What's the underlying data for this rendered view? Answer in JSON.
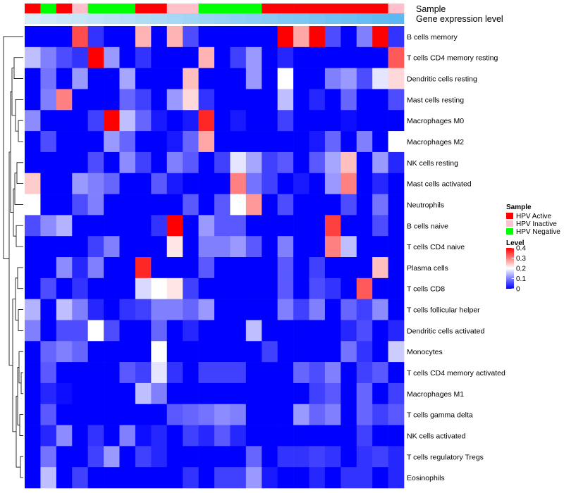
{
  "chart_data": {
    "type": "heatmap",
    "title": "",
    "rows": [
      "B cells memory",
      "T cells CD4 memory resting",
      "Dendritic cells resting",
      "Mast cells resting",
      "Macrophages M0",
      "Macrophages M2",
      "NK cells resting",
      "Mast cells activated",
      "Neutrophils",
      "B cells naive",
      "T cells CD4 naive",
      "Plasma cells",
      "T cells CD8",
      "T cells follicular helper",
      "Dendritic cells activated",
      "Monocytes",
      "T cells CD4 memory activated",
      "Macrophages M1",
      "T cells gamma delta",
      "NK cells activated",
      "T cells regulatory  Tregs",
      "Eosinophils"
    ],
    "samples": [
      "HPV Active",
      "HPV Negative",
      "HPV Active",
      "HPV Inactive",
      "HPV Negative",
      "HPV Negative",
      "HPV Negative",
      "HPV Active",
      "HPV Active",
      "HPV Inactive",
      "HPV Inactive",
      "HPV Negative",
      "HPV Negative",
      "HPV Negative",
      "HPV Negative",
      "HPV Active",
      "HPV Active",
      "HPV Active",
      "HPV Active",
      "HPV Active",
      "HPV Active",
      "HPV Active",
      "HPV Active",
      "HPV Inactive"
    ],
    "expression_track": [
      0.05,
      0.06,
      0.07,
      0.08,
      0.09,
      0.1,
      0.11,
      0.12,
      0.13,
      0.14,
      0.15,
      0.16,
      0.17,
      0.18,
      0.19,
      0.2,
      0.21,
      0.22,
      0.23,
      0.24,
      0.25,
      0.26,
      0.27,
      0.28
    ],
    "values": [
      [
        0,
        0,
        0,
        0.34,
        0.04,
        0,
        0,
        0.26,
        0,
        0.26,
        0.06,
        0,
        0,
        0,
        0,
        0,
        0.4,
        0.27,
        0.4,
        0.06,
        0,
        0.1,
        0.4,
        0.04
      ],
      [
        0.15,
        0.1,
        0.06,
        0.04,
        0.4,
        0.12,
        0,
        0.04,
        0,
        0,
        0,
        0.26,
        0,
        0.05,
        0.12,
        0,
        0.03,
        0,
        0,
        0,
        0,
        0,
        0,
        0.33
      ],
      [
        0,
        0.09,
        0,
        0.12,
        0,
        0,
        0.13,
        0,
        0,
        0,
        0.25,
        0,
        0,
        0,
        0.12,
        0,
        0.2,
        0,
        0,
        0.1,
        0.12,
        0.06,
        0.18,
        0.23
      ],
      [
        0,
        0.1,
        0.3,
        0,
        0,
        0,
        0.08,
        0.05,
        0,
        0.12,
        0.23,
        0.04,
        0,
        0,
        0,
        0,
        0.15,
        0,
        0.03,
        0,
        0.08,
        0,
        0,
        0.06
      ],
      [
        0.11,
        0,
        0,
        0,
        0.05,
        0.4,
        0.15,
        0.08,
        0.02,
        0,
        0.02,
        0.37,
        0,
        0.02,
        0,
        0,
        0.05,
        0,
        0,
        0,
        0.01,
        0,
        0,
        0
      ],
      [
        0,
        0.06,
        0,
        0,
        0,
        0.12,
        0.08,
        0,
        0,
        0.02,
        0.08,
        0.27,
        0,
        0,
        0,
        0,
        0,
        0,
        0.02,
        0.08,
        0,
        0.1,
        0,
        0.2
      ],
      [
        0,
        0,
        0,
        0,
        0.06,
        0,
        0.11,
        0.05,
        0,
        0.1,
        0.07,
        0,
        0.05,
        0.18,
        0.13,
        0.05,
        0.07,
        0,
        0.07,
        0.13,
        0.25,
        0,
        0.12,
        0.03
      ],
      [
        0.24,
        0,
        0,
        0.12,
        0.1,
        0.08,
        0,
        0,
        0.07,
        0.02,
        0,
        0,
        0,
        0.3,
        0.09,
        0.05,
        0,
        0.02,
        0,
        0.12,
        0.3,
        0,
        0.03,
        0
      ],
      [
        0.2,
        0,
        0,
        0.06,
        0.1,
        0,
        0,
        0,
        0,
        0,
        0.07,
        0,
        0.07,
        0.2,
        0.28,
        0,
        0.06,
        0,
        0,
        0,
        0.06,
        0,
        0.09,
        0
      ],
      [
        0.06,
        0.11,
        0.14,
        0,
        0,
        0,
        0,
        0,
        0.04,
        0.4,
        0,
        0.12,
        0.07,
        0.07,
        0,
        0,
        0,
        0,
        0,
        0.35,
        0,
        0,
        0.06,
        0
      ],
      [
        0,
        0,
        0,
        0,
        0.05,
        0.1,
        0,
        0,
        0,
        0.22,
        0,
        0.1,
        0.1,
        0.12,
        0.07,
        0,
        0.1,
        0,
        0,
        0.3,
        0.15,
        0,
        0,
        0
      ],
      [
        0,
        0,
        0.11,
        0.03,
        0.1,
        0,
        0,
        0.37,
        0,
        0,
        0,
        0.07,
        0,
        0,
        0,
        0,
        0.07,
        0,
        0.05,
        0,
        0,
        0,
        0.25,
        0
      ],
      [
        0,
        0.06,
        0,
        0.04,
        0,
        0,
        0,
        0.17,
        0.2,
        0.22,
        0.05,
        0,
        0,
        0,
        0,
        0,
        0.07,
        0,
        0.06,
        0.04,
        0,
        0.33,
        0,
        0
      ],
      [
        0.14,
        0,
        0.15,
        0.1,
        0.03,
        0,
        0.04,
        0.05,
        0.1,
        0.1,
        0.08,
        0.12,
        0,
        0,
        0,
        0,
        0.1,
        0.05,
        0.1,
        0,
        0.08,
        0.05,
        0.11,
        0
      ],
      [
        0.1,
        0,
        0.06,
        0.06,
        0.2,
        0.06,
        0,
        0,
        0.08,
        0,
        0.03,
        0,
        0,
        0,
        0.15,
        0,
        0,
        0,
        0,
        0,
        0.03,
        0.06,
        0,
        0.03
      ],
      [
        0,
        0.08,
        0.1,
        0.08,
        0,
        0,
        0,
        0,
        0.2,
        0,
        0,
        0,
        0,
        0,
        0,
        0.05,
        0,
        0,
        0,
        0,
        0.09,
        0.04,
        0,
        0.16
      ],
      [
        0,
        0.07,
        0,
        0,
        0,
        0,
        0.07,
        0.05,
        0.18,
        0.04,
        0,
        0.05,
        0.05,
        0.05,
        0,
        0,
        0,
        0.08,
        0.06,
        0.1,
        0,
        0.05,
        0.07,
        0
      ],
      [
        0,
        0.03,
        0.01,
        0,
        0,
        0,
        0,
        0.15,
        0.1,
        0,
        0,
        0,
        0,
        0,
        0,
        0,
        0,
        0,
        0.05,
        0.07,
        0,
        0.08,
        0,
        0.05
      ],
      [
        0,
        0.07,
        0,
        0,
        0,
        0,
        0,
        0,
        0,
        0.07,
        0.08,
        0.09,
        0.11,
        0.1,
        0,
        0,
        0,
        0.12,
        0.08,
        0.1,
        0,
        0.08,
        0.05,
        0.07
      ],
      [
        0,
        0.03,
        0.11,
        0,
        0.04,
        0,
        0.1,
        0.01,
        0.03,
        0,
        0.05,
        0.03,
        0.07,
        0.03,
        0,
        0,
        0,
        0,
        0,
        0,
        0,
        0.05,
        0,
        0
      ],
      [
        0,
        0.09,
        0,
        0,
        0.05,
        0.12,
        0,
        0.05,
        0.03,
        0,
        0,
        0,
        0,
        0,
        0.08,
        0,
        0.04,
        0.04,
        0.05,
        0.04,
        0,
        0.04,
        0.05,
        0.03
      ],
      [
        0,
        0.15,
        0,
        0.05,
        0,
        0,
        0,
        0,
        0,
        0,
        0.04,
        0,
        0.05,
        0.05,
        0.12,
        0.02,
        0,
        0,
        0.03,
        0,
        0.04,
        0.04,
        0,
        0.03
      ]
    ],
    "sample_legend": {
      "title": "Sample",
      "entries": [
        {
          "label": "HPV Active",
          "color": "#ff0000"
        },
        {
          "label": "HPV Inactive",
          "color": "#ffc0cb"
        },
        {
          "label": "HPV Negative",
          "color": "#00ff00"
        }
      ]
    },
    "level_legend": {
      "title": "Level",
      "ticks": [
        0.4,
        0.3,
        0.2,
        0.1,
        0
      ],
      "tick_labels": [
        "0.4",
        "0.3",
        "0.2",
        "0.1",
        "0"
      ],
      "range": [
        0,
        0.4
      ]
    },
    "track_labels": {
      "sample": "Sample",
      "expression": "Gene expression level"
    },
    "colors": {
      "low": "#0000ff",
      "mid": "#ffffff",
      "high": "#ff0000",
      "expression_low": "#d6ecf8",
      "expression_high": "#5bb8f2"
    }
  }
}
